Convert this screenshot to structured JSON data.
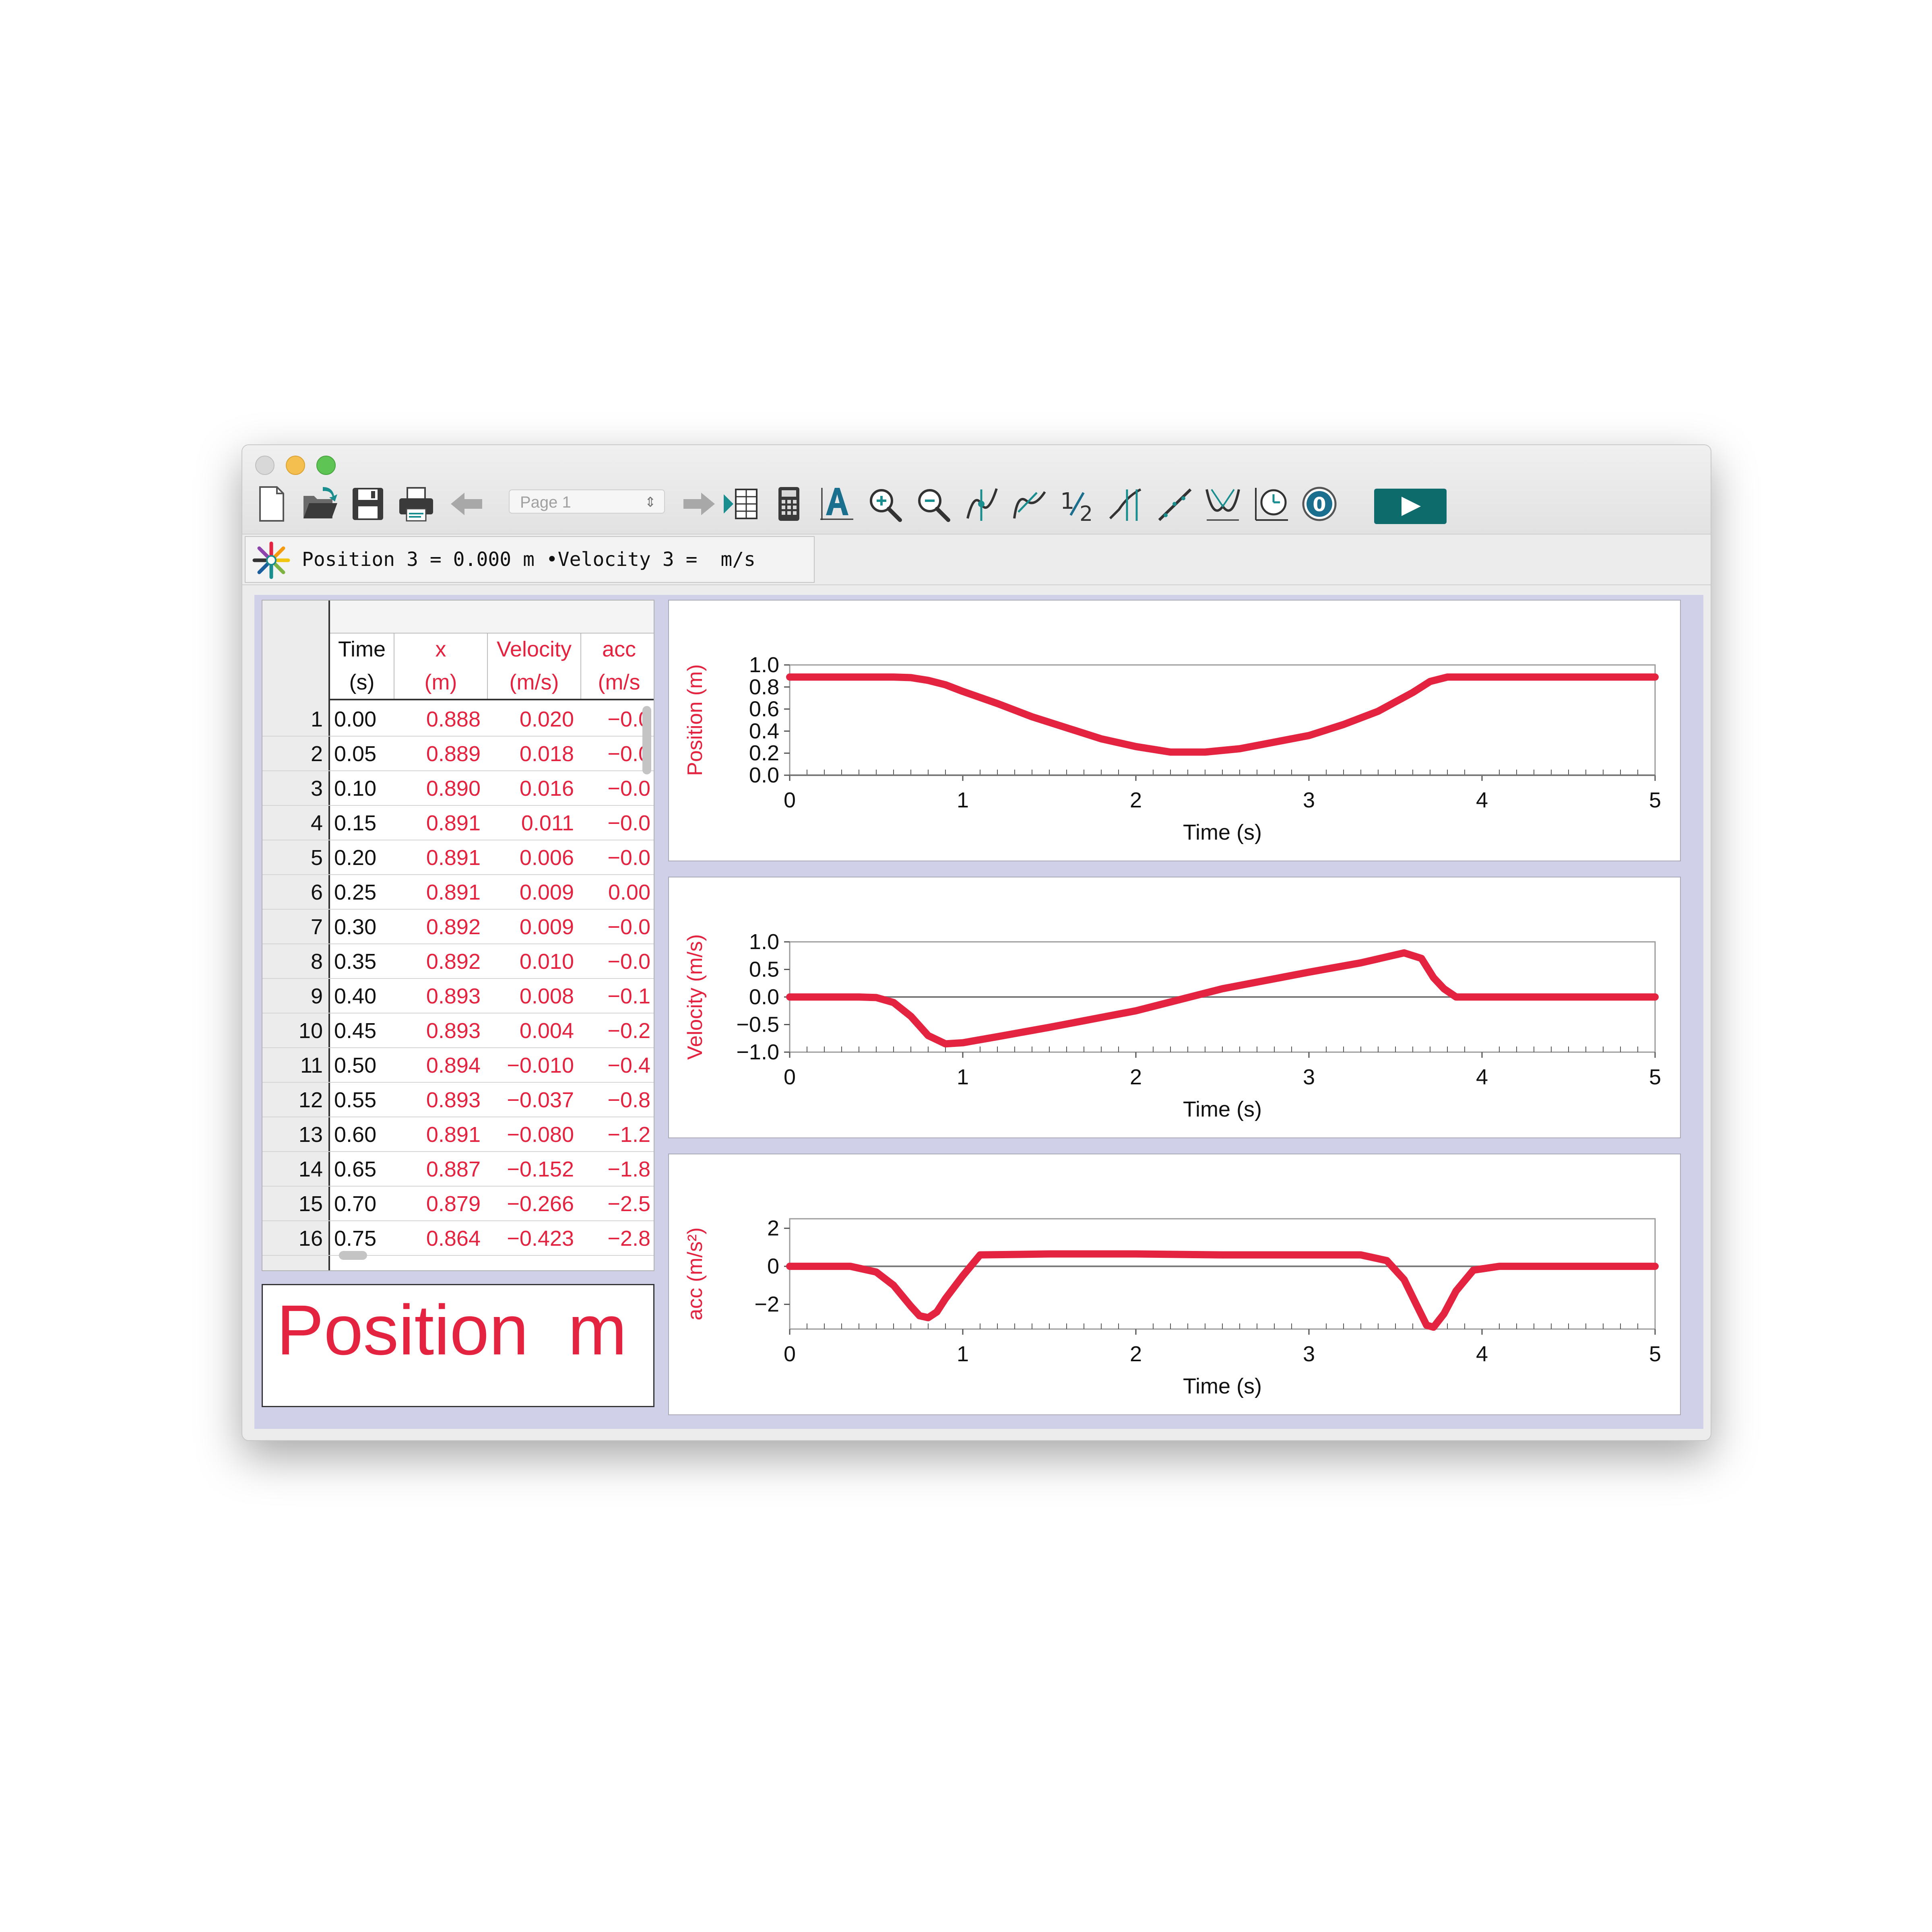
{
  "toolbar": {
    "page_selector": "Page 1",
    "icons": [
      "new-file-icon",
      "open-file-icon",
      "save-icon",
      "print-icon",
      "back-arrow-icon",
      "forward-arrow-icon",
      "data-table-icon",
      "calculator-icon",
      "autoscale-icon",
      "zoom-in-icon",
      "zoom-out-icon",
      "examine-icon",
      "tangent-icon",
      "integral-icon",
      "stats-icon",
      "curve-fit-icon",
      "linear-fit-icon",
      "model-icon",
      "replay-icon",
      "zero-icon",
      "collect-icon"
    ],
    "accent_color": "#0e6b6c"
  },
  "meter": {
    "text": "Position 3 = 0.000 m •Velocity 3 =  m/s"
  },
  "table": {
    "columns": [
      {
        "name": "Time",
        "unit": "(s)",
        "color": "#111111"
      },
      {
        "name": "x",
        "unit": "(m)",
        "color": "#e3233f"
      },
      {
        "name": "Velocity",
        "unit": "(m/s)",
        "color": "#e3233f"
      },
      {
        "name": "acc",
        "unit": "(m/s",
        "color": "#e3233f"
      }
    ],
    "rows": [
      {
        "n": "1",
        "c": [
          "0.00",
          "0.888",
          "0.020",
          "−0.0"
        ]
      },
      {
        "n": "2",
        "c": [
          "0.05",
          "0.889",
          "0.018",
          "−0.0"
        ]
      },
      {
        "n": "3",
        "c": [
          "0.10",
          "0.890",
          "0.016",
          "−0.0"
        ]
      },
      {
        "n": "4",
        "c": [
          "0.15",
          "0.891",
          "0.011",
          "−0.0"
        ]
      },
      {
        "n": "5",
        "c": [
          "0.20",
          "0.891",
          "0.006",
          "−0.0"
        ]
      },
      {
        "n": "6",
        "c": [
          "0.25",
          "0.891",
          "0.009",
          "0.00"
        ]
      },
      {
        "n": "7",
        "c": [
          "0.30",
          "0.892",
          "0.009",
          "−0.0"
        ]
      },
      {
        "n": "8",
        "c": [
          "0.35",
          "0.892",
          "0.010",
          "−0.0"
        ]
      },
      {
        "n": "9",
        "c": [
          "0.40",
          "0.893",
          "0.008",
          "−0.1"
        ]
      },
      {
        "n": "10",
        "c": [
          "0.45",
          "0.893",
          "0.004",
          "−0.2"
        ]
      },
      {
        "n": "11",
        "c": [
          "0.50",
          "0.894",
          "−0.010",
          "−0.4"
        ]
      },
      {
        "n": "12",
        "c": [
          "0.55",
          "0.893",
          "−0.037",
          "−0.8"
        ]
      },
      {
        "n": "13",
        "c": [
          "0.60",
          "0.891",
          "−0.080",
          "−1.2"
        ]
      },
      {
        "n": "14",
        "c": [
          "0.65",
          "0.887",
          "−0.152",
          "−1.8"
        ]
      },
      {
        "n": "15",
        "c": [
          "0.70",
          "0.879",
          "−0.266",
          "−2.5"
        ]
      },
      {
        "n": "16",
        "c": [
          "0.75",
          "0.864",
          "−0.423",
          "−2.8"
        ]
      }
    ]
  },
  "big_meter": {
    "label": "Position",
    "unit": "m",
    "color": "#e3233f"
  },
  "chart_data": [
    {
      "type": "line",
      "ylabel": "Position (m)",
      "xlabel": "Time (s)",
      "xlim": [
        0,
        5
      ],
      "ylim": [
        0,
        1
      ],
      "xticks": [
        "0",
        "1",
        "2",
        "3",
        "4",
        "5"
      ],
      "yticks": [
        "0.0",
        "0.2",
        "0.4",
        "0.6",
        "0.8",
        "1.0"
      ],
      "yticks_values": [
        0,
        0.2,
        0.4,
        0.6,
        0.8,
        1.0
      ],
      "zero_line": false,
      "line_color": "#e3233f",
      "x": [
        0,
        0.6,
        0.7,
        0.8,
        0.9,
        1.0,
        1.2,
        1.4,
        1.6,
        1.8,
        2.0,
        2.2,
        2.4,
        2.6,
        2.8,
        3.0,
        3.2,
        3.4,
        3.6,
        3.7,
        3.8,
        4.0,
        4.5,
        5.0
      ],
      "y": [
        0.89,
        0.89,
        0.885,
        0.86,
        0.82,
        0.76,
        0.65,
        0.53,
        0.43,
        0.33,
        0.26,
        0.21,
        0.21,
        0.24,
        0.3,
        0.36,
        0.46,
        0.58,
        0.75,
        0.85,
        0.89,
        0.89,
        0.89,
        0.89
      ]
    },
    {
      "type": "line",
      "ylabel": "Velocity (m/s)",
      "xlabel": "Time (s)",
      "xlim": [
        0,
        5
      ],
      "ylim": [
        -1.0,
        1.0
      ],
      "xticks": [
        "0",
        "1",
        "2",
        "3",
        "4",
        "5"
      ],
      "yticks": [
        "−1.0",
        "−0.5",
        "0.0",
        "0.5",
        "1.0"
      ],
      "yticks_values": [
        -1.0,
        -0.5,
        0,
        0.5,
        1.0
      ],
      "zero_line": true,
      "line_color": "#e3233f",
      "x": [
        0,
        0.4,
        0.5,
        0.6,
        0.7,
        0.8,
        0.9,
        1.0,
        1.2,
        1.5,
        2.0,
        2.5,
        3.0,
        3.3,
        3.55,
        3.65,
        3.72,
        3.78,
        3.85,
        4.0,
        4.5,
        5.0
      ],
      "y": [
        0,
        0,
        -0.01,
        -0.1,
        -0.35,
        -0.7,
        -0.85,
        -0.83,
        -0.72,
        -0.55,
        -0.25,
        0.15,
        0.45,
        0.62,
        0.8,
        0.7,
        0.35,
        0.15,
        0,
        0,
        0,
        0
      ]
    },
    {
      "type": "line",
      "ylabel": "acc (m/s²)",
      "xlabel": "Time (s)",
      "xlim": [
        0,
        5
      ],
      "ylim": [
        -3.3,
        2.5
      ],
      "xticks": [
        "0",
        "1",
        "2",
        "3",
        "4",
        "5"
      ],
      "yticks": [
        "−2",
        "0",
        "2"
      ],
      "yticks_values": [
        -2,
        0,
        2
      ],
      "zero_line": true,
      "line_color": "#e3233f",
      "x": [
        0,
        0.35,
        0.5,
        0.6,
        0.7,
        0.75,
        0.8,
        0.85,
        0.9,
        1.0,
        1.1,
        1.5,
        2.0,
        2.5,
        3.0,
        3.3,
        3.45,
        3.55,
        3.62,
        3.68,
        3.72,
        3.78,
        3.85,
        3.95,
        4.1,
        5.0
      ],
      "y": [
        0,
        0,
        -0.3,
        -1.0,
        -2.1,
        -2.6,
        -2.7,
        -2.4,
        -1.7,
        -0.5,
        0.6,
        0.65,
        0.65,
        0.6,
        0.6,
        0.6,
        0.3,
        -0.7,
        -2.0,
        -3.1,
        -3.2,
        -2.5,
        -1.3,
        -0.2,
        0,
        0
      ]
    }
  ]
}
